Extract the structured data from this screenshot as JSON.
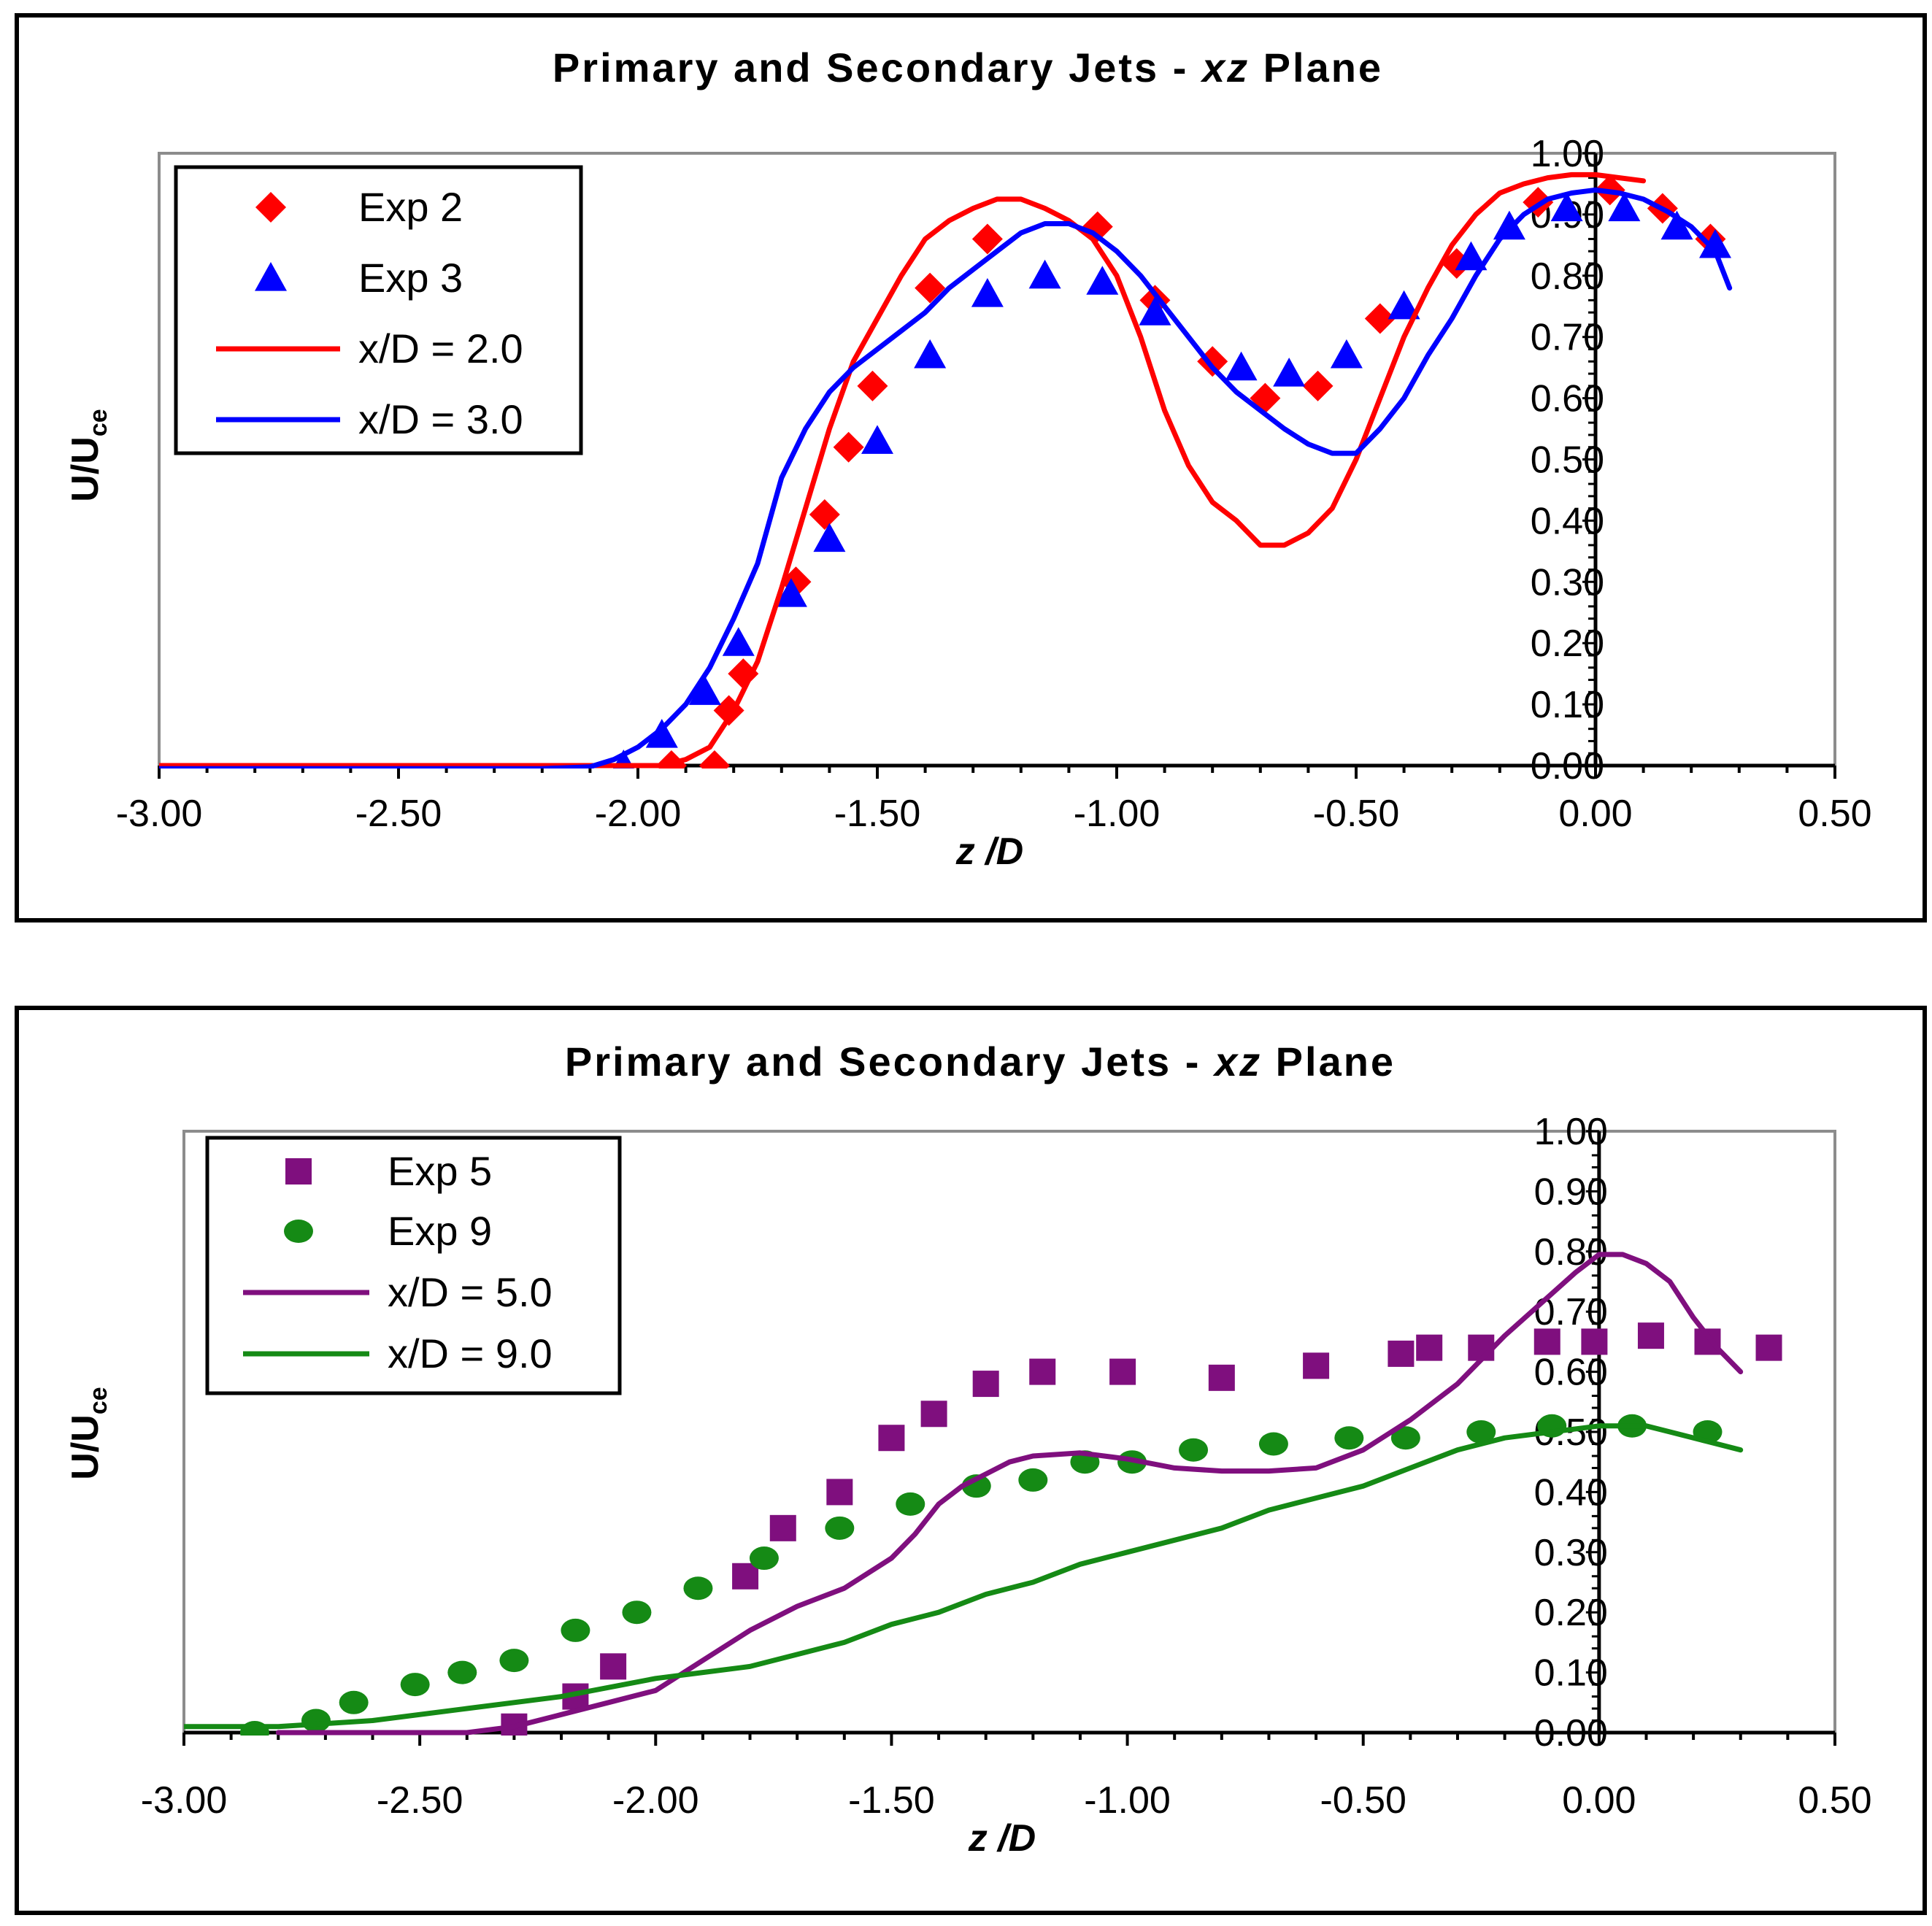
{
  "chart_data": [
    {
      "type": "line",
      "title_prefix": "Primary and Secondary Jets - ",
      "title_italic": "xz",
      "title_suffix": " Plane",
      "title": "Primary and Secondary Jets - xz Plane",
      "xlabel": "z /D",
      "ylabel": "U/U",
      "ylabel_sub": "ce",
      "xlim": [
        -3.0,
        0.5
      ],
      "ylim": [
        0.0,
        1.0
      ],
      "xticks": [
        "-3.00",
        "-2.50",
        "-2.00",
        "-1.50",
        "-1.00",
        "-0.50",
        "0.00",
        "0.50"
      ],
      "yticks": [
        "0.00",
        "0.10",
        "0.20",
        "0.30",
        "0.40",
        "0.50",
        "0.60",
        "0.70",
        "0.80",
        "0.90",
        "1.00"
      ],
      "series": [
        {
          "name": "Exp 2",
          "kind": "scatter",
          "marker": "diamond",
          "color": "#ff0000",
          "x": [
            -1.93,
            -1.84,
            -1.81,
            -1.78,
            -1.67,
            -1.61,
            -1.56,
            -1.51,
            -1.39,
            -1.27,
            -1.04,
            -0.92,
            -0.8,
            -0.69,
            -0.58,
            -0.45,
            -0.29,
            -0.12,
            0.03,
            0.14,
            0.24
          ],
          "y": [
            0.0,
            0.0,
            0.09,
            0.15,
            0.3,
            0.41,
            0.52,
            0.62,
            0.78,
            0.86,
            0.88,
            0.76,
            0.66,
            0.6,
            0.62,
            0.73,
            0.82,
            0.92,
            0.94,
            0.91,
            0.86
          ]
        },
        {
          "name": "Exp 3",
          "kind": "scatter",
          "marker": "triangle",
          "color": "#0000ff",
          "x": [
            -2.03,
            -1.95,
            -1.86,
            -1.79,
            -1.68,
            -1.6,
            -1.5,
            -1.39,
            -1.27,
            -1.15,
            -1.03,
            -0.92,
            -0.74,
            -0.64,
            -0.52,
            -0.4,
            -0.26,
            -0.18,
            -0.06,
            0.06,
            0.17,
            0.25
          ],
          "y": [
            0.0,
            0.05,
            0.12,
            0.2,
            0.28,
            0.37,
            0.53,
            0.67,
            0.77,
            0.8,
            0.79,
            0.74,
            0.65,
            0.64,
            0.67,
            0.75,
            0.83,
            0.88,
            0.91,
            0.91,
            0.88,
            0.85
          ]
        },
        {
          "name": "x/D = 2.0",
          "kind": "line",
          "color": "#ff0000",
          "x": [
            -3.0,
            -2.5,
            -2.2,
            -2.0,
            -1.95,
            -1.9,
            -1.85,
            -1.8,
            -1.75,
            -1.7,
            -1.65,
            -1.6,
            -1.55,
            -1.5,
            -1.45,
            -1.4,
            -1.35,
            -1.3,
            -1.25,
            -1.2,
            -1.15,
            -1.1,
            -1.05,
            -1.0,
            -0.95,
            -0.9,
            -0.85,
            -0.8,
            -0.75,
            -0.7,
            -0.65,
            -0.6,
            -0.55,
            -0.5,
            -0.45,
            -0.4,
            -0.35,
            -0.3,
            -0.25,
            -0.2,
            -0.15,
            -0.1,
            -0.05,
            0.0,
            0.05,
            0.1
          ],
          "y": [
            0.0,
            0.0,
            0.0,
            0.0,
            0.0,
            0.01,
            0.03,
            0.09,
            0.17,
            0.29,
            0.42,
            0.55,
            0.66,
            0.73,
            0.8,
            0.86,
            0.89,
            0.91,
            0.925,
            0.925,
            0.91,
            0.89,
            0.86,
            0.8,
            0.7,
            0.58,
            0.49,
            0.43,
            0.4,
            0.36,
            0.36,
            0.38,
            0.42,
            0.5,
            0.6,
            0.7,
            0.78,
            0.85,
            0.9,
            0.935,
            0.95,
            0.96,
            0.965,
            0.965,
            0.96,
            0.955
          ]
        },
        {
          "name": "x/D = 3.0",
          "kind": "line",
          "color": "#0000ff",
          "x": [
            -3.0,
            -2.5,
            -2.2,
            -2.1,
            -2.05,
            -2.0,
            -1.95,
            -1.9,
            -1.85,
            -1.8,
            -1.75,
            -1.7,
            -1.65,
            -1.6,
            -1.55,
            -1.5,
            -1.45,
            -1.4,
            -1.35,
            -1.3,
            -1.25,
            -1.2,
            -1.15,
            -1.1,
            -1.05,
            -1.0,
            -0.95,
            -0.9,
            -0.85,
            -0.8,
            -0.75,
            -0.7,
            -0.65,
            -0.6,
            -0.55,
            -0.5,
            -0.45,
            -0.4,
            -0.35,
            -0.3,
            -0.25,
            -0.2,
            -0.15,
            -0.1,
            -0.05,
            0.0,
            0.05,
            0.1,
            0.15,
            0.2,
            0.25,
            0.28
          ],
          "y": [
            -0.005,
            -0.005,
            -0.005,
            -0.002,
            0.01,
            0.03,
            0.06,
            0.1,
            0.16,
            0.24,
            0.33,
            0.47,
            0.55,
            0.61,
            0.65,
            0.68,
            0.71,
            0.74,
            0.78,
            0.81,
            0.84,
            0.87,
            0.885,
            0.885,
            0.87,
            0.84,
            0.8,
            0.75,
            0.7,
            0.65,
            0.61,
            0.58,
            0.55,
            0.525,
            0.51,
            0.51,
            0.55,
            0.6,
            0.67,
            0.73,
            0.8,
            0.86,
            0.9,
            0.925,
            0.935,
            0.94,
            0.935,
            0.925,
            0.905,
            0.88,
            0.84,
            0.78
          ]
        }
      ]
    },
    {
      "type": "line",
      "title_prefix": "Primary and Secondary Jets - ",
      "title_italic": "xz",
      "title_suffix": " Plane",
      "title": "Primary and Secondary Jets - xz Plane",
      "xlabel": "z /D",
      "ylabel": "U/U",
      "ylabel_sub": "ce",
      "xlim": [
        -3.0,
        0.5
      ],
      "ylim": [
        0.0,
        1.0
      ],
      "xticks": [
        "-3.00",
        "-2.50",
        "-2.00",
        "-1.50",
        "-1.00",
        "-0.50",
        "0.00",
        "0.50"
      ],
      "yticks": [
        "0.00",
        "0.10",
        "0.20",
        "0.30",
        "0.40",
        "0.50",
        "0.60",
        "0.70",
        "0.80",
        "0.90",
        "1.00"
      ],
      "series": [
        {
          "name": "Exp 5",
          "kind": "scatter",
          "marker": "square",
          "color": "#7f0f7e",
          "x": [
            -2.3,
            -2.17,
            -2.09,
            -1.81,
            -1.73,
            -1.61,
            -1.5,
            -1.41,
            -1.3,
            -1.18,
            -1.01,
            -0.8,
            -0.6,
            -0.42,
            -0.36,
            -0.25,
            -0.11,
            -0.01,
            0.11,
            0.23,
            0.36
          ],
          "y": [
            0.01,
            0.06,
            0.11,
            0.26,
            0.34,
            0.4,
            0.49,
            0.53,
            0.58,
            0.6,
            0.6,
            0.59,
            0.61,
            0.63,
            0.64,
            0.64,
            0.65,
            0.65,
            0.66,
            0.65,
            0.64
          ],
          "w": 0
        },
        {
          "name": "Exp 9",
          "kind": "scatter",
          "marker": "circle",
          "color": "#158a15",
          "x": [
            -2.85,
            -2.72,
            -2.64,
            -2.51,
            -2.41,
            -2.3,
            -2.17,
            -2.04,
            -1.91,
            -1.77,
            -1.61,
            -1.46,
            -1.32,
            -1.2,
            -1.09,
            -0.99,
            -0.86,
            -0.69,
            -0.53,
            -0.41,
            -0.25,
            -0.1,
            0.07,
            0.23
          ],
          "y": [
            0.0,
            0.02,
            0.05,
            0.08,
            0.1,
            0.12,
            0.17,
            0.2,
            0.24,
            0.29,
            0.34,
            0.38,
            0.41,
            0.42,
            0.45,
            0.45,
            0.47,
            0.48,
            0.49,
            0.49,
            0.5,
            0.51,
            0.51,
            0.5
          ]
        },
        {
          "name": "x/D = 5.0",
          "kind": "line",
          "color": "#7f0f7e",
          "x": [
            -2.8,
            -2.6,
            -2.4,
            -2.3,
            -2.2,
            -2.1,
            -2.0,
            -1.9,
            -1.8,
            -1.7,
            -1.6,
            -1.5,
            -1.45,
            -1.4,
            -1.35,
            -1.3,
            -1.25,
            -1.2,
            -1.1,
            -1.0,
            -0.9,
            -0.8,
            -0.7,
            -0.6,
            -0.5,
            -0.4,
            -0.3,
            -0.2,
            -0.1,
            -0.05,
            0.0,
            0.05,
            0.1,
            0.15,
            0.2,
            0.25,
            0.3
          ],
          "y": [
            0.0,
            0.0,
            0.0,
            0.01,
            0.03,
            0.05,
            0.07,
            0.12,
            0.17,
            0.21,
            0.24,
            0.29,
            0.33,
            0.38,
            0.41,
            0.43,
            0.45,
            0.46,
            0.465,
            0.455,
            0.44,
            0.435,
            0.435,
            0.44,
            0.47,
            0.52,
            0.58,
            0.66,
            0.73,
            0.765,
            0.795,
            0.795,
            0.78,
            0.75,
            0.69,
            0.64,
            0.6
          ]
        },
        {
          "name": "x/D = 9.0",
          "kind": "line",
          "color": "#158a15",
          "x": [
            -3.0,
            -2.8,
            -2.6,
            -2.4,
            -2.2,
            -2.0,
            -1.9,
            -1.8,
            -1.7,
            -1.6,
            -1.5,
            -1.4,
            -1.3,
            -1.2,
            -1.1,
            -1.0,
            -0.9,
            -0.8,
            -0.7,
            -0.6,
            -0.5,
            -0.4,
            -0.3,
            -0.2,
            -0.1,
            0.0,
            0.1,
            0.2,
            0.3
          ],
          "y": [
            0.01,
            0.01,
            0.02,
            0.04,
            0.06,
            0.09,
            0.1,
            0.11,
            0.13,
            0.15,
            0.18,
            0.2,
            0.23,
            0.25,
            0.28,
            0.3,
            0.32,
            0.34,
            0.37,
            0.39,
            0.41,
            0.44,
            0.47,
            0.49,
            0.5,
            0.51,
            0.51,
            0.49,
            0.47
          ]
        }
      ]
    }
  ]
}
